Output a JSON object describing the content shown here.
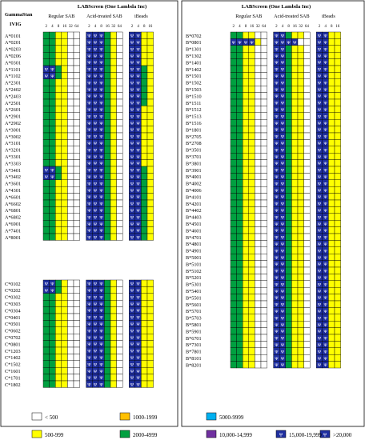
{
  "colors": {
    "lt500": "#ffffff",
    "r500_999": "#ffff00",
    "r1000_1999": "#ffc000",
    "r2000_4999": "#00a040",
    "r5000_9999": "#00b0f0",
    "r10000_14999": "#7030a0",
    "r15000_19999": "#1f2fa0",
    "r20000": "#1f2fa0",
    "grid": "#000000"
  },
  "header": {
    "gamma_line1": "GammaStan",
    "gamma_line2": "IVIG",
    "title_left": "LABScreen (One Lambda Inc)",
    "title_right": "LABScreen (One Lambda Inc)",
    "groups": [
      "Regular SAB",
      "Acid-treated SAB",
      "iBeads"
    ],
    "dilutions": [
      "2",
      "4",
      "8",
      "16",
      "32",
      "64"
    ]
  },
  "panels": [
    {
      "name": "A",
      "alleles": [
        "A*0101",
        "A*0201",
        "A*0203",
        "A*0206",
        "A*0301",
        "A*1101",
        "A*1102",
        "A*2301",
        "A*2402",
        "A*2403",
        "A*2501",
        "A*2601",
        "A*2901",
        "A*2902",
        "A*3001",
        "A*3002",
        "A*3101",
        "A*3201",
        "A*3301",
        "A*3303",
        "A*3401",
        "A*3402",
        "A*3601",
        "A*4301",
        "A*6601",
        "A*6602",
        "A*6801",
        "A*6802",
        "A*6901",
        "A*7401",
        "A*8001"
      ],
      "rows": [
        [
          "ggyyww",
          "VVVgyw",
          "BByy"
        ],
        [
          "ggyyww",
          "VVVgyw",
          "BByy"
        ],
        [
          "ggyyww",
          "VVVgyw",
          "BByy"
        ],
        [
          "ggyyww",
          "VVVgyw",
          "BByy"
        ],
        [
          "ggyyww",
          "BBBgyw",
          "BByy"
        ],
        [
          "BBgyww",
          "VVBgyw",
          "VVgy"
        ],
        [
          "BBgyww",
          "VVBgyw",
          "VVgy"
        ],
        [
          "ggyyww",
          "VVBgyw",
          "VVgy"
        ],
        [
          "ggyyww",
          "VVBgyw",
          "VVgy"
        ],
        [
          "ggyyww",
          "VVBgyw",
          "VVgy"
        ],
        [
          "ggyyww",
          "BBBgyw",
          "VVgy"
        ],
        [
          "ggyyww",
          "VVBgyw",
          "BByy"
        ],
        [
          "ggyyww",
          "VVBgyw",
          "BByy"
        ],
        [
          "ggyyww",
          "VVBgyw",
          "BByy"
        ],
        [
          "ggyyww",
          "VVBgyw",
          "BByy"
        ],
        [
          "ggyyww",
          "VVBgyw",
          "BByy"
        ],
        [
          "ggyyww",
          "VVBgyw",
          "BByy"
        ],
        [
          "ggyyww",
          "VVBgyw",
          "BByy"
        ],
        [
          "ggyyww",
          "VVBgyw",
          "BByy"
        ],
        [
          "ggyyww",
          "VVBgyw",
          "BByy"
        ],
        [
          "BBgyww",
          "VVBgyw",
          "VVgy"
        ],
        [
          "BBgyww",
          "VVBgyw",
          "VVgy"
        ],
        [
          "ggyyww",
          "VVBgyw",
          "VVgy"
        ],
        [
          "ggyyww",
          "VVBgyw",
          "VVgy"
        ],
        [
          "ggyyww",
          "VVBgyw",
          "VVgy"
        ],
        [
          "ggyyww",
          "VVBgyw",
          "VVgy"
        ],
        [
          "ggyyww",
          "VVBgyw",
          "VVgy"
        ],
        [
          "ggyyww",
          "VVBgyw",
          "VVgy"
        ],
        [
          "ggyyww",
          "VVBgyw",
          "VVgy"
        ],
        [
          "ggyyww",
          "VVBgyw",
          "VVgy"
        ],
        [
          "ggyyww",
          "VVBgyw",
          "VVgy"
        ]
      ]
    },
    {
      "name": "C",
      "alleles": [
        "C*0102",
        "C*0202",
        "C*0302",
        "C*0303",
        "C*0304",
        "C*0401",
        "C*0501",
        "C*0602",
        "C*0702",
        "C*0801",
        "C*1203",
        "C*1402",
        "C*1502",
        "C*1601",
        "C*1701",
        "C*1802"
      ],
      "rows": [
        [
          "BBgyww",
          "VVVgyw",
          "BByy"
        ],
        [
          "BBgyww",
          "VVVgyw",
          "BByy"
        ],
        [
          "ggyyww",
          "VVBgyw",
          "BByy"
        ],
        [
          "ggyyww",
          "VVBgyw",
          "BByy"
        ],
        [
          "ggyyww",
          "VVBgyw",
          "BByy"
        ],
        [
          "ggyyww",
          "VVBgyw",
          "BByy"
        ],
        [
          "ggyyww",
          "VVBgyw",
          "BByy"
        ],
        [
          "ggyyww",
          "VVBgyw",
          "BByy"
        ],
        [
          "ggyyww",
          "VVBgyw",
          "BByy"
        ],
        [
          "ggyyww",
          "VVBgyw",
          "BByy"
        ],
        [
          "ggyyww",
          "VVBgyw",
          "BByy"
        ],
        [
          "ggyyww",
          "VVBgyw",
          "BByy"
        ],
        [
          "ggyyww",
          "VVBgyw",
          "BByy"
        ],
        [
          "ggyyww",
          "VVBgyw",
          "BByy"
        ],
        [
          "ggyyww",
          "VVBgyw",
          "BByy"
        ],
        [
          "ggyyww",
          "VVBgyw",
          "BByy"
        ]
      ]
    },
    {
      "name": "B",
      "alleles": [
        "B*0702",
        "B*0801",
        "B*1301",
        "B*1302",
        "B*1401",
        "B*1402",
        "B*1501",
        "B*1502",
        "B*1503",
        "B*1510",
        "B*1511",
        "B*1512",
        "B*1513",
        "B*1516",
        "B*1801",
        "B*2705",
        "B*2708",
        "B*3501",
        "B*3701",
        "B*3801",
        "B*3901",
        "B*4001",
        "B*4002",
        "B*4006",
        "B*4101",
        "B*4201",
        "B*4402",
        "B*4403",
        "B*4501",
        "B*4601",
        "B*4701",
        "B*4801",
        "B*4901",
        "B*5001",
        "B*5101",
        "B*5102",
        "B*5201",
        "B*5301",
        "B*5401",
        "B*5501",
        "B*5601",
        "B*5701",
        "B*5703",
        "B*5801",
        "B*5901",
        "B*6701",
        "B*7301",
        "B*7801",
        "B*8101",
        "B*8201"
      ],
      "rows": [
        [
          "ggyyww",
          "BBgyyw",
          "BByy"
        ],
        [
          "BBBByw",
          "VVVBww",
          "BByy"
        ],
        [
          "ggyyww",
          "BBgyyw",
          "BByy"
        ],
        [
          "ggyyww",
          "BBgyyw",
          "BByy"
        ],
        [
          "ggyyww",
          "BBgyyw",
          "BByy"
        ],
        [
          "ggyyww",
          "BBgyyw",
          "BByy"
        ],
        [
          "ggyyww",
          "BBgyyw",
          "BByy"
        ],
        [
          "ggyyww",
          "BBgyyw",
          "BByy"
        ],
        [
          "ggyyww",
          "BBgyyw",
          "BByy"
        ],
        [
          "ggyyww",
          "BBgyyw",
          "BByy"
        ],
        [
          "ggyyww",
          "BBgyyw",
          "BByy"
        ],
        [
          "ggyyww",
          "BBgyyw",
          "BByy"
        ],
        [
          "ggyyww",
          "BBgyyw",
          "BByy"
        ],
        [
          "ggyyww",
          "BBgyyw",
          "BByy"
        ],
        [
          "ggyyww",
          "BBgyyw",
          "BByy"
        ],
        [
          "ggyyww",
          "BBgyyw",
          "BByy"
        ],
        [
          "ggyyww",
          "BBgyyw",
          "BByy"
        ],
        [
          "ggyyww",
          "BBgyyw",
          "BByy"
        ],
        [
          "ggyyww",
          "BBgyyw",
          "BByy"
        ],
        [
          "ggyyww",
          "BBgyyw",
          "BByy"
        ],
        [
          "ggyyww",
          "BBgyyw",
          "BByy"
        ],
        [
          "ggyyww",
          "BBgyyw",
          "BByy"
        ],
        [
          "ggyyww",
          "BBgyyw",
          "BByy"
        ],
        [
          "ggyyww",
          "BBgyyw",
          "BByy"
        ],
        [
          "ggyyww",
          "BBgyyw",
          "BByy"
        ],
        [
          "ggyyww",
          "BBgyyw",
          "BByy"
        ],
        [
          "ggyyww",
          "BBgyyw",
          "BByy"
        ],
        [
          "ggyyww",
          "BBgyyw",
          "BByy"
        ],
        [
          "ggyyww",
          "BBgyyw",
          "BByy"
        ],
        [
          "ggyyww",
          "BBgyyw",
          "BByy"
        ],
        [
          "ggyyww",
          "BBgyyw",
          "BByy"
        ],
        [
          "ggyyww",
          "BBgyyw",
          "BByy"
        ],
        [
          "ggyyww",
          "BBgyyw",
          "BByy"
        ],
        [
          "ggyyww",
          "BBgyyw",
          "BByy"
        ],
        [
          "ggyyww",
          "BBgyyw",
          "BByy"
        ],
        [
          "ggyyww",
          "BBgyyw",
          "BByy"
        ],
        [
          "ggyyww",
          "BBgyyw",
          "BByy"
        ],
        [
          "ggyyww",
          "BBgyyw",
          "BByy"
        ],
        [
          "ggyyww",
          "BBgyyw",
          "BByy"
        ],
        [
          "ggyyww",
          "BBgyyw",
          "BByy"
        ],
        [
          "ggyyww",
          "BBgyyw",
          "BByy"
        ],
        [
          "ggyyww",
          "BBgyyw",
          "BByy"
        ],
        [
          "ggyyww",
          "BBgyyw",
          "BByy"
        ],
        [
          "ggyyww",
          "BBgyyw",
          "BByy"
        ],
        [
          "ggyyww",
          "BBgyyw",
          "BByy"
        ],
        [
          "ggyyww",
          "BBgyyw",
          "BByy"
        ],
        [
          "ggyyww",
          "BBgyyw",
          "BByy"
        ],
        [
          "ggyyww",
          "BBgyyw",
          "BByy"
        ],
        [
          "ggyyww",
          "BBgyyw",
          "BByy"
        ],
        [
          "ggyyww",
          "VBgyyw",
          "BByy"
        ]
      ]
    }
  ],
  "legend": [
    {
      "key": "w",
      "label": "< 500"
    },
    {
      "key": "o",
      "label": "1000-1999"
    },
    {
      "key": "b",
      "label": "5000-9999"
    },
    {
      "key": "y",
      "label": "500-999"
    },
    {
      "key": "g",
      "label": "2000-4999"
    },
    {
      "key": "v",
      "label": "10,000-14,999"
    },
    {
      "key": "B",
      "label": "15,000-19,999",
      "mark": "Ψ"
    },
    {
      "key": "V",
      "label": ">20,000",
      "mark": "Ψ"
    }
  ]
}
